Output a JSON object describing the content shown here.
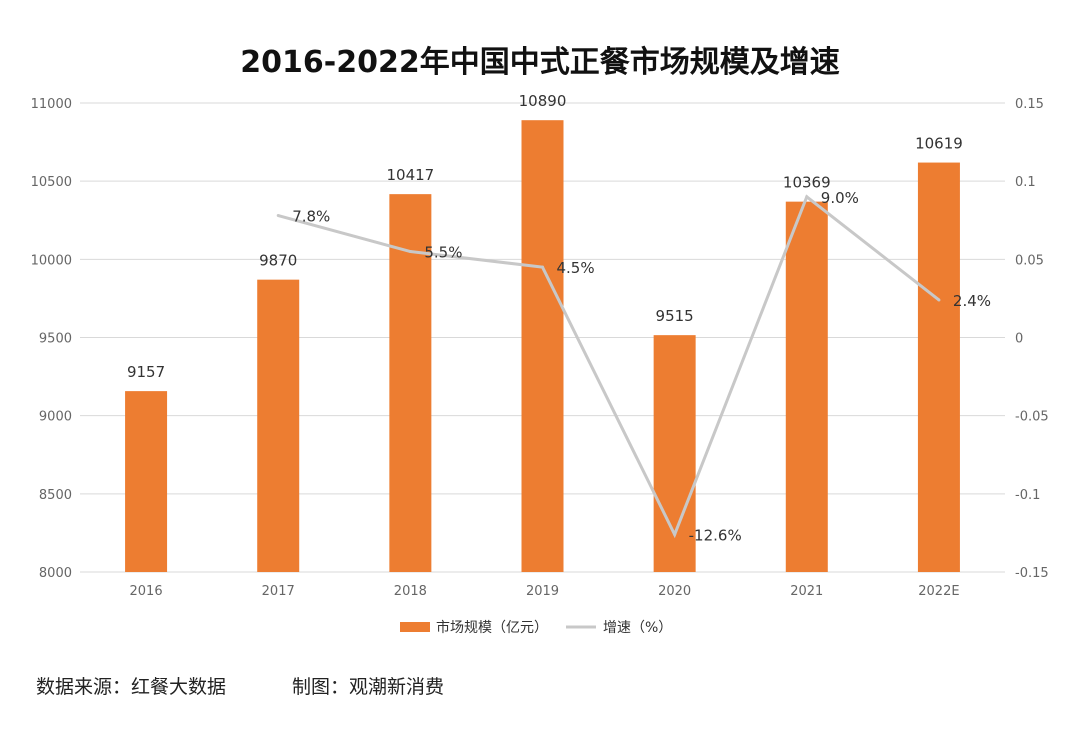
{
  "chart_data": {
    "type": "bar+line",
    "title": "2016-2022年中国中式正餐市场规模及增速",
    "categories": [
      "2016",
      "2017",
      "2018",
      "2019",
      "2020",
      "2021",
      "2022E"
    ],
    "series": [
      {
        "name": "市场规模（亿元）",
        "type": "bar",
        "axis": "left",
        "color": "#ED7D31",
        "values": [
          9157,
          9870,
          10417,
          10890,
          9515,
          10369,
          10619
        ],
        "labels": [
          "9157",
          "9870",
          "10417",
          "10890",
          "9515",
          "10369",
          "10619"
        ]
      },
      {
        "name": "增速（%）",
        "type": "line",
        "axis": "right",
        "color": "#C8C8C8",
        "values": [
          null,
          0.078,
          0.055,
          0.045,
          -0.126,
          0.09,
          0.024
        ],
        "labels": [
          "",
          "7.8%",
          "5.5%",
          "4.5%",
          "-12.6%",
          "9.0%",
          "2.4%"
        ]
      }
    ],
    "left_axis": {
      "range": [
        8000,
        11000
      ],
      "ticks": [
        "8000",
        "8500",
        "9000",
        "9500",
        "10000",
        "10500",
        "11000"
      ]
    },
    "right_axis": {
      "range": [
        -0.15,
        0.15
      ],
      "ticks": [
        "-0.15",
        "-0.1",
        "-0.05",
        "0",
        "0.05",
        "0.1",
        "0.15"
      ]
    },
    "grid": true,
    "legend_position": "bottom"
  },
  "footer": {
    "source": "数据来源：红餐大数据",
    "credit": "制图：观潮新消费"
  }
}
